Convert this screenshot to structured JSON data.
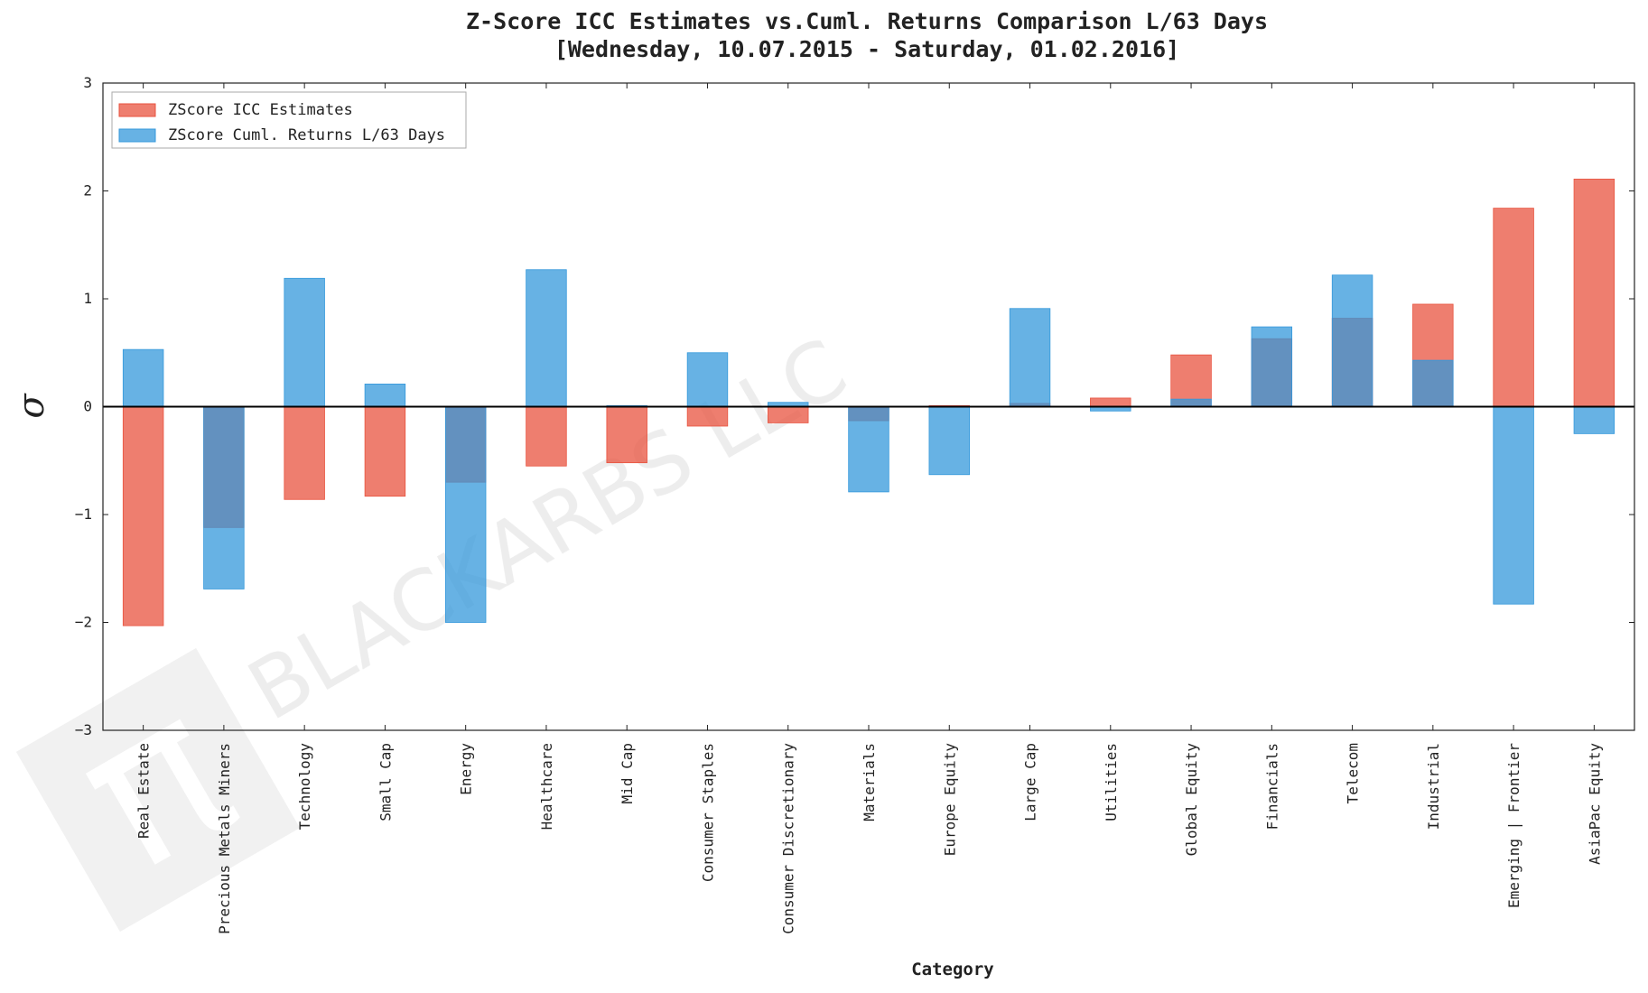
{
  "chart_data": {
    "type": "bar",
    "title": "Z-Score ICC Estimates vs.Cuml. Returns Comparison L/63 Days",
    "subtitle": "[Wednesday, 10.07.2015 - Saturday, 01.02.2016]",
    "x_label": "Category",
    "y_label": "σ",
    "watermark": "BLACKARBS LLC",
    "watermark_logo": "π",
    "categories": [
      "Real Estate",
      "Precious Metals Miners",
      "Technology",
      "Small Cap",
      "Energy",
      "Healthcare",
      "Mid Cap",
      "Consumer Staples",
      "Consumer Discretionary",
      "Materials",
      "Europe Equity",
      "Large Cap",
      "Utilities",
      "Global Equity",
      "Financials",
      "Telecom",
      "Industrial",
      "Emerging | Frontier",
      "AsiaPac Equity"
    ],
    "series": [
      {
        "name": "ZScore ICC Estimates",
        "color": "#e8533f",
        "values": [
          -2.03,
          -1.12,
          -0.86,
          -0.83,
          -0.7,
          -0.55,
          -0.52,
          -0.18,
          -0.15,
          -0.13,
          0.01,
          0.03,
          0.08,
          0.48,
          0.63,
          0.82,
          0.95,
          1.84,
          2.11
        ]
      },
      {
        "name": "ZScore Cuml. Returns L/63 Days",
        "color": "#3498db",
        "values": [
          0.53,
          -1.69,
          1.19,
          0.21,
          -2.0,
          1.27,
          0.01,
          0.5,
          0.04,
          -0.79,
          -0.63,
          0.91,
          -0.04,
          0.07,
          0.74,
          1.22,
          0.43,
          -1.83,
          -0.25
        ]
      }
    ],
    "ylim": [
      -3,
      3
    ],
    "yticks": [
      {
        "value": -3,
        "label": "−3"
      },
      {
        "value": -2,
        "label": "−2"
      },
      {
        "value": -1,
        "label": "−1"
      },
      0,
      1,
      2,
      3
    ],
    "legend": "upper left",
    "grid": false
  }
}
